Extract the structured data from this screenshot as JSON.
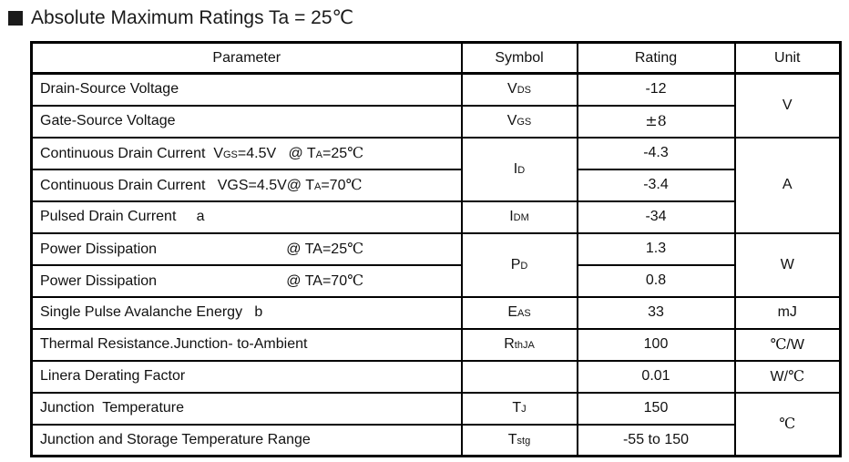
{
  "title": {
    "text": "Absolute Maximum Ratings Ta = 25℃"
  },
  "table": {
    "headers": [
      "Parameter",
      "Symbol",
      "Rating",
      "Unit"
    ],
    "rows": [
      {
        "parameter": [
          {
            "t": "Drain-Source Voltage"
          }
        ],
        "symbol": {
          "parts": [
            {
              "t": "V"
            },
            {
              "t": "DS",
              "sub": true
            }
          ]
        },
        "rating": {
          "parts": [
            {
              "t": "-12"
            }
          ]
        },
        "unit": {
          "parts": [
            {
              "t": "V"
            }
          ],
          "rowspan": 2
        }
      },
      {
        "parameter": [
          {
            "t": "Gate-Source Voltage"
          }
        ],
        "symbol": {
          "parts": [
            {
              "t": "V"
            },
            {
              "t": "GS",
              "sub": true
            }
          ]
        },
        "rating": {
          "parts": [
            {
              "t": "±8",
              "serif": true
            }
          ]
        },
        "unit": null
      },
      {
        "parameter": [
          {
            "t": "Continuous Drain Current  V"
          },
          {
            "t": "GS",
            "sub": true
          },
          {
            "t": "=4.5V   @ T"
          },
          {
            "t": "A",
            "sub": true
          },
          {
            "t": "=25"
          },
          {
            "t": "℃",
            "serif": true
          }
        ],
        "symbol": {
          "parts": [
            {
              "t": "I"
            },
            {
              "t": "D",
              "sub": true
            }
          ],
          "rowspan": 2
        },
        "rating": {
          "parts": [
            {
              "t": "-4.3"
            }
          ]
        },
        "unit": {
          "parts": [
            {
              "t": "A"
            }
          ],
          "rowspan": 3
        }
      },
      {
        "parameter": [
          {
            "t": "Continuous Drain Current   VGS=4.5V@ T"
          },
          {
            "t": "A",
            "sub": true
          },
          {
            "t": "=70"
          },
          {
            "t": "℃",
            "serif": true
          }
        ],
        "symbol": null,
        "rating": {
          "parts": [
            {
              "t": "-3.4"
            }
          ]
        },
        "unit": null
      },
      {
        "parameter": [
          {
            "t": "Pulsed Drain Current     a"
          }
        ],
        "symbol": {
          "parts": [
            {
              "t": "I"
            },
            {
              "t": "DM",
              "sub": true
            }
          ]
        },
        "rating": {
          "parts": [
            {
              "t": "-34"
            }
          ]
        },
        "unit": null
      },
      {
        "parameter": [
          {
            "t": "Power Dissipation                                @ TA=25"
          },
          {
            "t": "℃",
            "serif": true
          }
        ],
        "symbol": {
          "parts": [
            {
              "t": "P"
            },
            {
              "t": "D",
              "sub": true
            }
          ],
          "rowspan": 2
        },
        "rating": {
          "parts": [
            {
              "t": "1.3"
            }
          ]
        },
        "unit": {
          "parts": [
            {
              "t": "W"
            }
          ],
          "rowspan": 2
        }
      },
      {
        "parameter": [
          {
            "t": "Power Dissipation                                @ TA=70"
          },
          {
            "t": "℃",
            "serif": true
          }
        ],
        "symbol": null,
        "rating": {
          "parts": [
            {
              "t": "0.8"
            }
          ]
        },
        "unit": null
      },
      {
        "parameter": [
          {
            "t": "Single Pulse Avalanche Energy   b"
          }
        ],
        "symbol": {
          "parts": [
            {
              "t": "E"
            },
            {
              "t": "AS",
              "sub": true
            }
          ]
        },
        "rating": {
          "parts": [
            {
              "t": "33"
            }
          ]
        },
        "unit": {
          "parts": [
            {
              "t": "mJ"
            }
          ]
        }
      },
      {
        "parameter": [
          {
            "t": "Thermal Resistance.Junction- to-Ambient"
          }
        ],
        "symbol": {
          "parts": [
            {
              "t": "R"
            },
            {
              "t": "thJA",
              "sub": true
            }
          ]
        },
        "rating": {
          "parts": [
            {
              "t": "100"
            }
          ]
        },
        "unit": {
          "parts": [
            {
              "t": "℃",
              "serif": true
            },
            {
              "t": "/W"
            }
          ]
        }
      },
      {
        "parameter": [
          {
            "t": "Linera Derating Factor"
          }
        ],
        "symbol": {
          "parts": []
        },
        "rating": {
          "parts": [
            {
              "t": "0.01"
            }
          ]
        },
        "unit": {
          "parts": [
            {
              "t": "W/"
            },
            {
              "t": "℃",
              "serif": true
            }
          ]
        }
      },
      {
        "parameter": [
          {
            "t": "Junction  Temperature"
          }
        ],
        "symbol": {
          "parts": [
            {
              "t": "T"
            },
            {
              "t": "J",
              "sub": true
            }
          ]
        },
        "rating": {
          "parts": [
            {
              "t": "150"
            }
          ]
        },
        "unit": {
          "parts": [
            {
              "t": "℃",
              "serif": true
            }
          ],
          "rowspan": 2
        }
      },
      {
        "parameter": [
          {
            "t": "Junction and Storage Temperature Range"
          }
        ],
        "symbol": {
          "parts": [
            {
              "t": "T"
            },
            {
              "t": "stg",
              "sub": true
            }
          ]
        },
        "rating": {
          "parts": [
            {
              "t": "-55 to 150"
            }
          ]
        },
        "unit": null
      }
    ]
  }
}
